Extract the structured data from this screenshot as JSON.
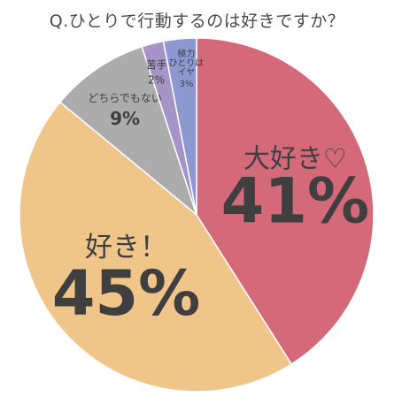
{
  "chart_data": {
    "type": "pie",
    "title": "Q.ひとりで行動するのは好きですか？",
    "start_angle_deg": 0,
    "direction": "clockwise",
    "slices": [
      {
        "label": "大好き♡",
        "value": 41,
        "display": "41%",
        "color": "#d4697a"
      },
      {
        "label": "好き！",
        "value": 45,
        "display": "45%",
        "color": "#f0c589"
      },
      {
        "label": "どちらでもない",
        "value": 9,
        "display": "9%",
        "color": "#acacac"
      },
      {
        "label": "苦手",
        "value": 2,
        "display": "2%",
        "color": "#a693c8"
      },
      {
        "label": "極力ひとりはイヤ",
        "label_lines": [
          "極力",
          "ひとりは",
          "イヤ"
        ],
        "value": 3,
        "display": "3%",
        "color": "#8d98d0"
      }
    ]
  }
}
